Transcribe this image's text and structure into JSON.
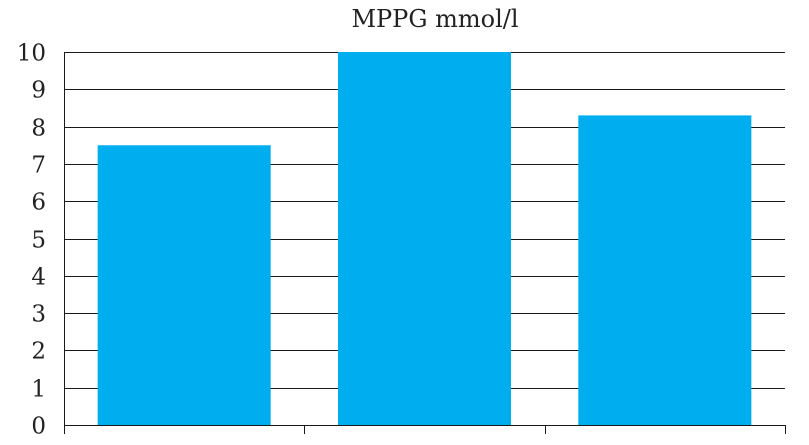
{
  "chart_data": {
    "type": "bar",
    "title": "MPPG mmol/l",
    "categories": [
      "",
      "",
      ""
    ],
    "values": [
      7.5,
      10.0,
      8.3
    ],
    "ylim": [
      0,
      10
    ],
    "yticks": [
      "0",
      "1",
      "2",
      "3",
      "4",
      "5",
      "6",
      "7",
      "8",
      "9",
      "10"
    ],
    "grid": true,
    "legend": "none",
    "bar_color": "#00AEEF"
  }
}
